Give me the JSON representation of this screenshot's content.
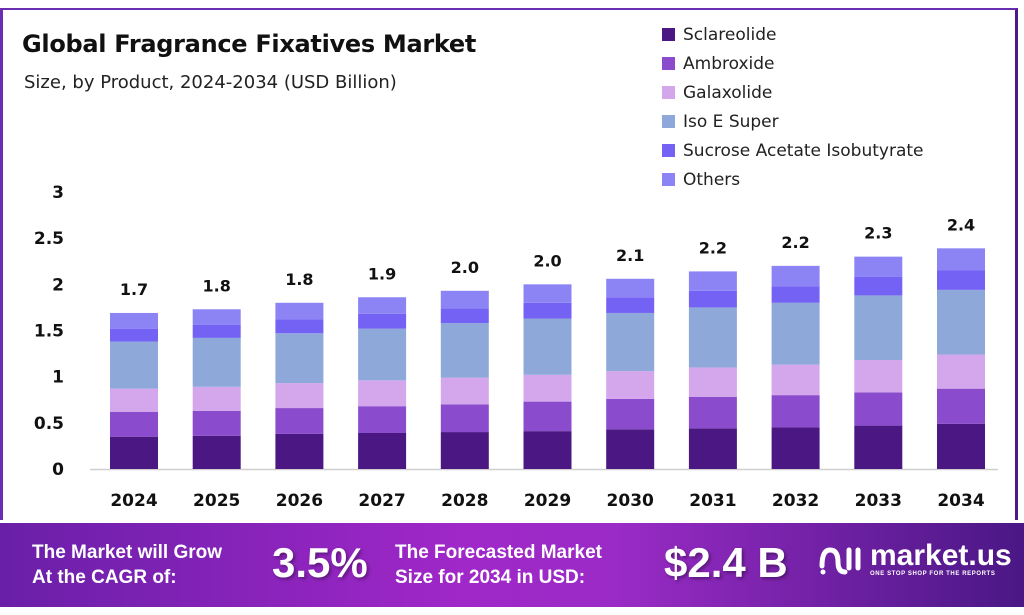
{
  "header": {
    "title": "Global Fragrance Fixatives Market",
    "subtitle": "Size, by Product, 2024-2034 (USD Billion)"
  },
  "chart_data": {
    "type": "bar",
    "stacked": true,
    "title": "Global Fragrance Fixatives Market",
    "subtitle": "Size, by Product, 2024-2034 (USD Billion)",
    "xlabel": "",
    "ylabel": "",
    "ylim": [
      0,
      3
    ],
    "yticks": [
      "0",
      "0.5",
      "1",
      "1.5",
      "2",
      "2.5",
      "3"
    ],
    "ytick_values": [
      0,
      0.5,
      1,
      1.5,
      2,
      2.5,
      3
    ],
    "grid": false,
    "legend_position": "top-right",
    "categories": [
      "2024",
      "2025",
      "2026",
      "2027",
      "2028",
      "2029",
      "2030",
      "2031",
      "2032",
      "2033",
      "2034"
    ],
    "totals_labels": [
      "1.7",
      "1.8",
      "1.8",
      "1.9",
      "2.0",
      "2.0",
      "2.1",
      "2.2",
      "2.2",
      "2.3",
      "2.4"
    ],
    "series": [
      {
        "name": "Sclareolide",
        "color": "#4b1782",
        "values": [
          0.35,
          0.36,
          0.38,
          0.39,
          0.4,
          0.41,
          0.43,
          0.44,
          0.45,
          0.47,
          0.49
        ]
      },
      {
        "name": "Ambroxide",
        "color": "#8a4ccc",
        "values": [
          0.27,
          0.27,
          0.28,
          0.29,
          0.3,
          0.32,
          0.33,
          0.34,
          0.35,
          0.36,
          0.38
        ]
      },
      {
        "name": "Galaxolide",
        "color": "#d4a6ec",
        "values": [
          0.25,
          0.26,
          0.27,
          0.28,
          0.29,
          0.29,
          0.3,
          0.32,
          0.33,
          0.35,
          0.37
        ]
      },
      {
        "name": "Iso E Super",
        "color": "#8fa8da",
        "values": [
          0.51,
          0.53,
          0.54,
          0.56,
          0.59,
          0.61,
          0.63,
          0.65,
          0.67,
          0.7,
          0.7
        ]
      },
      {
        "name": "Sucrose Acetate Isobutyrate",
        "color": "#7462f4",
        "values": [
          0.14,
          0.14,
          0.15,
          0.16,
          0.16,
          0.17,
          0.17,
          0.18,
          0.18,
          0.2,
          0.21
        ]
      },
      {
        "name": "Others",
        "color": "#8c84f4",
        "values": [
          0.17,
          0.17,
          0.18,
          0.18,
          0.19,
          0.2,
          0.2,
          0.21,
          0.22,
          0.22,
          0.24
        ]
      }
    ]
  },
  "footer": {
    "cagr_label_line1": "The Market will Grow",
    "cagr_label_line2": "At the CAGR of:",
    "cagr_value": "3.5%",
    "forecast_label_line1": "The Forecasted Market",
    "forecast_label_line2": "Size for 2034 in USD:",
    "forecast_value": "$2.4 B",
    "brand_name": "market.us",
    "brand_tagline": "ONE STOP SHOP FOR THE REPORTS"
  }
}
